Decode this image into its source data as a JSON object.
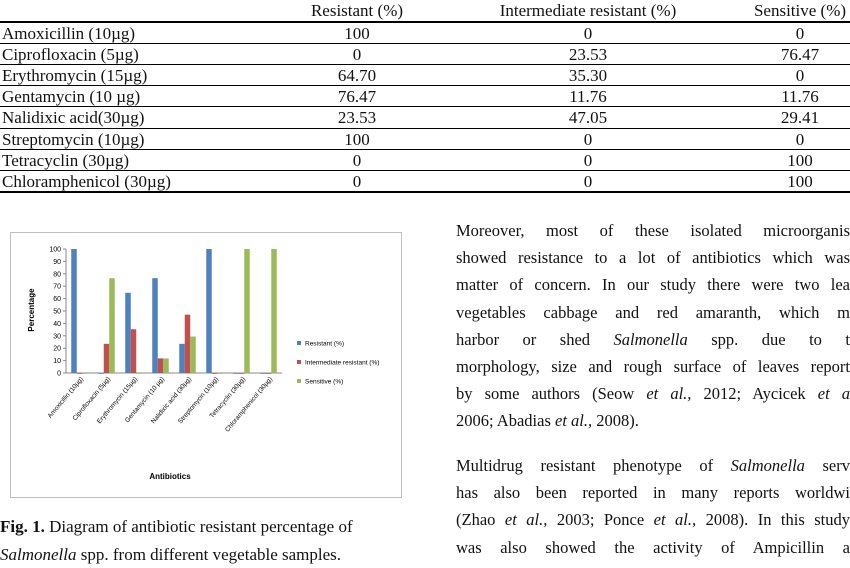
{
  "table": {
    "header": [
      "Resistant (%)",
      "Intermediate resistant (%)",
      "Sensitive (%)"
    ],
    "rows": [
      [
        "Amoxicillin (10µg)",
        "100",
        "0",
        "0"
      ],
      [
        "Ciprofloxacin (5µg)",
        "0",
        "23.53",
        "76.47"
      ],
      [
        "Erythromycin (15µg)",
        "64.70",
        "35.30",
        "0"
      ],
      [
        "Gentamycin (10 µg)",
        "76.47",
        "11.76",
        "11.76"
      ],
      [
        "Nalidixic acid(30µg)",
        "23.53",
        "47.05",
        "29.41"
      ],
      [
        "Streptomycin (10µg)",
        "100",
        "0",
        "0"
      ],
      [
        "Tetracyclin (30µg)",
        "0",
        "0",
        "100"
      ],
      [
        "Chloramphenicol (30µg)",
        "0",
        "0",
        "100"
      ]
    ]
  },
  "chart_data": {
    "type": "bar",
    "x_label": "Antibiotics",
    "y_label": "Percentage",
    "categories": [
      "Amoxicillin (10µg)",
      "Ciprofloxacin (5µg)",
      "Erythromycin (15µg)",
      "Gentamycin (10 µg)",
      "Nalidixic acid (30µg)",
      "Streptomycin (10µg)",
      "Tetracyclin (30µg)",
      "Chloramphenicol (30µg)"
    ],
    "series": [
      {
        "name": "Resistant (%)",
        "color": "#4f81bd",
        "values": [
          100,
          0,
          64.7,
          76.47,
          23.53,
          100,
          0,
          0
        ]
      },
      {
        "name": "Intermediate resistant (%)",
        "color": "#c0504d",
        "values": [
          0,
          23.53,
          35.3,
          11.76,
          47.05,
          0,
          0,
          0
        ]
      },
      {
        "name": "Sensitive (%)",
        "color": "#9bbb59",
        "values": [
          0,
          76.47,
          0,
          11.76,
          29.41,
          0,
          100,
          100
        ]
      }
    ],
    "ylim": [
      0,
      100
    ],
    "yticks": [
      0,
      10,
      20,
      30,
      40,
      50,
      60,
      70,
      80,
      90,
      100
    ],
    "legend": "right"
  },
  "caption": [
    [
      {
        "text": "Fig. 1.",
        "bold": true
      },
      {
        "text": " Diagram of antibiotic resistant percentage of"
      }
    ],
    [
      {
        "text": "Salmonella",
        "italic": true
      },
      {
        "text": " spp. from different vegetable samples."
      }
    ]
  ],
  "paragraphs": [
    [
      [
        {
          "text": "Moreover, most of these isolated microorganis"
        }
      ],
      [
        {
          "text": "showed resistance to a lot of antibiotics which was"
        }
      ],
      [
        {
          "text": "matter of concern. In our study there were two lea"
        }
      ],
      [
        {
          "text": "vegetables cabbage and red amaranth, which m"
        }
      ],
      [
        {
          "text": "harbor or shed "
        },
        {
          "text": "Salmonella",
          "italic": true
        },
        {
          "text": " spp. due to t"
        }
      ],
      [
        {
          "text": "morphology, size and rough surface of leaves report"
        }
      ],
      [
        {
          "text": "by some authors (Seow "
        },
        {
          "text": "et al.,",
          "italic": true
        },
        {
          "text": " 2012; Aycicek "
        },
        {
          "text": "et a",
          "italic": true
        }
      ],
      [
        {
          "text": "2006; Abadias "
        },
        {
          "text": "et al.,",
          "italic": true
        },
        {
          "text": " 2008)."
        }
      ]
    ],
    [
      [
        {
          "text": "Multidrug resistant phenotype of "
        },
        {
          "text": "Salmonella",
          "italic": true
        },
        {
          "text": " serv"
        }
      ],
      [
        {
          "text": "has also been reported in many reports worldwi"
        }
      ],
      [
        {
          "text": "(Zhao "
        },
        {
          "text": "et al.,",
          "italic": true
        },
        {
          "text": " 2003; Ponce "
        },
        {
          "text": "et al.,",
          "italic": true
        },
        {
          "text": " 2008). In this study"
        }
      ],
      [
        {
          "text": "was also showed the activity of Ampicillin a"
        }
      ]
    ]
  ]
}
